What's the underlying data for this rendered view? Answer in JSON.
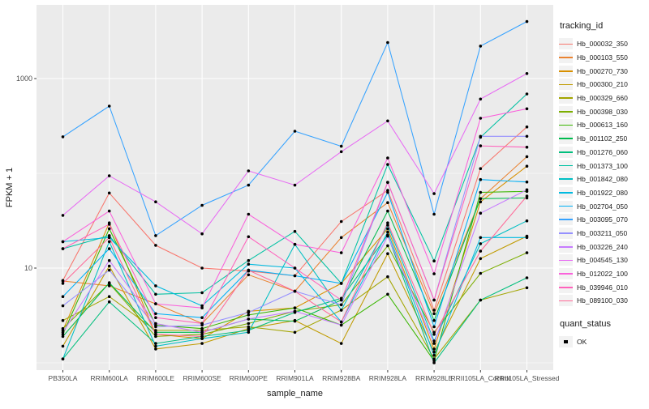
{
  "figure": {
    "x_axis_title": "sample_name",
    "y_axis_title": "FPKM + 1",
    "legend_tracking_title": "tracking_id",
    "legend_quant_title": "quant_status",
    "legend_quant_item": "OK"
  },
  "chart_data": {
    "type": "line",
    "title": "",
    "xlabel": "sample_name",
    "ylabel": "FPKM + 1",
    "y_scale": "log10",
    "y_major_ticks": [
      10,
      1000
    ],
    "y_tick_labels": [
      "10",
      "1000"
    ],
    "y_minor_gridlines": [
      1,
      100
    ],
    "ylim": [
      0.84,
      6000
    ],
    "grid": true,
    "legend_position": "right",
    "legend_title": "tracking_id",
    "quant_legend": {
      "title": "quant_status",
      "items": [
        "OK"
      ],
      "point_color": "#000000"
    },
    "panel_bg": "#EBEBEB",
    "grid_color": "#FFFFFF",
    "axis_text_color": "#4D4D4D",
    "axis_title_color": "#1a1a1a",
    "point_color": "#000000",
    "x_categories": [
      "PB350LA",
      "RRIM600LA",
      "RRIM600LE",
      "RRIM600SE",
      "RRIM600PE",
      "RRIM901LA",
      "RRIM928BA",
      "RRIM928LA",
      "RRIM928LE",
      "RRII105LA_Control",
      "RRII105LA_Stressed"
    ],
    "series": [
      {
        "name": "Hb_000032_350",
        "color": "#F8766D",
        "values": [
          7.4,
          62,
          17.4,
          10,
          9.3,
          8.3,
          31,
          66,
          3.6,
          112,
          309
        ]
      },
      {
        "name": "Hb_000103_550",
        "color": "#EA8331",
        "values": [
          7.3,
          6.5,
          4.2,
          2.6,
          8.5,
          5.7,
          21,
          49,
          3.3,
          54,
          150
        ]
      },
      {
        "name": "Hb_000270_730",
        "color": "#D89000",
        "values": [
          2.2,
          30,
          2.0,
          1.8,
          3.5,
          3.8,
          6.9,
          26,
          1.4,
          50,
          119
        ]
      },
      {
        "name": "Hb_000300_210",
        "color": "#C09B00",
        "values": [
          1.5,
          10.5,
          1.4,
          1.6,
          2.3,
          2.8,
          1.6,
          14.2,
          1.3,
          12.6,
          21.7
        ]
      },
      {
        "name": "Hb_000329_660",
        "color": "#A3A500",
        "values": [
          2.8,
          5.0,
          2.2,
          2.2,
          2.4,
          2.1,
          3.6,
          8.1,
          1.1,
          4.6,
          6.2
        ]
      },
      {
        "name": "Hb_000398_030",
        "color": "#7CAE00",
        "values": [
          2.3,
          6.9,
          1.9,
          2.0,
          2.6,
          3.5,
          4.1,
          17.2,
          2.1,
          8.8,
          14.5
        ]
      },
      {
        "name": "Hb_000613_160",
        "color": "#39B600",
        "values": [
          2.0,
          26,
          2.5,
          2.3,
          3.2,
          3.8,
          2.5,
          5.3,
          1.05,
          63,
          64.5
        ]
      },
      {
        "name": "Hb_001102_250",
        "color": "#00BB4E",
        "values": [
          1.9,
          7.0,
          2.1,
          2.1,
          2.9,
          2.75,
          4.6,
          40,
          2.8,
          54,
          55
        ]
      },
      {
        "name": "Hb_001276_060",
        "color": "#00BF7D",
        "values": [
          1.1,
          4.4,
          1.6,
          1.9,
          2.2,
          3.4,
          4.8,
          22.3,
          1.0,
          4.6,
          7.9
        ]
      },
      {
        "name": "Hb_001373_100",
        "color": "#00C1A3",
        "values": [
          16,
          22,
          5.3,
          5.5,
          12,
          24.4,
          6.9,
          124,
          11.9,
          240,
          688
        ]
      },
      {
        "name": "Hb_001842_080",
        "color": "#00BFC4",
        "values": [
          1.1,
          19,
          1.5,
          1.8,
          2.1,
          17.8,
          3.6,
          28.4,
          1.7,
          18.1,
          31.5
        ]
      },
      {
        "name": "Hb_001922_080",
        "color": "#00BAE0",
        "values": [
          19,
          21,
          6.5,
          4.0,
          11,
          10,
          2.7,
          24,
          1.2,
          21,
          21
        ]
      },
      {
        "name": "Hb_002704_050",
        "color": "#00B0F6",
        "values": [
          5.0,
          16,
          3.3,
          3.0,
          9.5,
          8.3,
          6.9,
          63,
          2.4,
          86,
          81
        ]
      },
      {
        "name": "Hb_003095_070",
        "color": "#35A2FF",
        "values": [
          243,
          512,
          22,
          46,
          75,
          278,
          193,
          2400,
          37,
          2200,
          4000
        ]
      },
      {
        "name": "Hb_003211_050",
        "color": "#9590FF",
        "values": [
          4.0,
          9.5,
          2.4,
          2.5,
          3.4,
          5.7,
          4.1,
          80,
          4.6,
          246,
          246
        ]
      },
      {
        "name": "Hb_003226_240",
        "color": "#C77CFF",
        "values": [
          2.1,
          12,
          2.6,
          2.1,
          2.9,
          3.5,
          2.5,
          21.7,
          1.6,
          38,
          67
        ]
      },
      {
        "name": "Hb_004545_130",
        "color": "#E76BF3",
        "values": [
          36,
          94,
          50,
          23,
          106,
          75,
          169,
          357,
          61,
          608,
          1130
        ]
      },
      {
        "name": "Hb_012022_100",
        "color": "#FA62DB",
        "values": [
          19,
          40,
          4.2,
          3.8,
          37,
          17.8,
          14.5,
          145,
          8.7,
          381,
          480
        ]
      },
      {
        "name": "Hb_039946_010",
        "color": "#FF62BC",
        "values": [
          16,
          29,
          3.0,
          2.6,
          21.4,
          10,
          4.6,
          80.5,
          4.6,
          195,
          189
        ]
      },
      {
        "name": "Hb_089100_030",
        "color": "#FF6A98",
        "values": [
          6.9,
          21,
          2.0,
          1.9,
          9.5,
          5.7,
          2.7,
          30,
          2.0,
          15.1,
          57.5
        ]
      }
    ]
  }
}
